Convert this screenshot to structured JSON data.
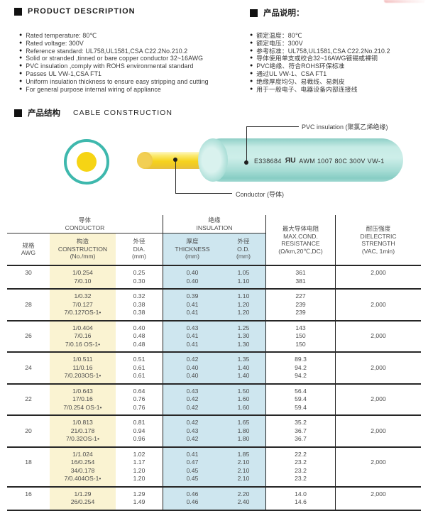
{
  "colors": {
    "teal_ring": "#3eb8ad",
    "conductor_yellow": "#f6d414",
    "band_yellow": "#faf3d2",
    "band_blue": "#cee6ef",
    "rule_dark": "#262626"
  },
  "product_description": {
    "title": "PRODUCT DESCRIPTION",
    "items": [
      "Rated temperature: 80℃",
      "Rated voltage: 300V",
      "Reference standard: UL758,UL1581,CSA C22.2No.210.2",
      "Solid or stranded ,tinned or bare copper conductor 32~16AWG",
      "PVC insulation ,comply with ROHS environmental standard",
      "Passes UL VW-1,CSA FT1",
      "Uniform insulation thickness to ensure easy stripping and cutting",
      "For general purpose internal wiring of appliance"
    ]
  },
  "product_notes_cn": {
    "title": "产品说明：",
    "items": [
      "额定温度：80℃",
      "额定电压：300V",
      "参考标准：UL758,UL1581,CSA C22.2No.210.2",
      "导体使用单支或绞合32~16AWG镀锡或裸铜",
      "PVC绝缘、符合ROHS环保标准",
      "通过UL VW-1、CSA FT1",
      "绝缘厚度均匀、易裁线、易剥皮",
      "用于一般电子、电器设备内部连接线"
    ]
  },
  "construction": {
    "title_cn": "产品结构",
    "title_en": "CABLE CONSTRUCTION",
    "insulation_label": "PVC insulation (聚氯乙烯绝缘)",
    "conductor_label": "Conductor (导体)",
    "marker_cert": "E338684",
    "marker_ul": "ЯU",
    "marker_spec": "AWM 1007 80C 300V VW-1"
  },
  "table": {
    "group_conductor_cn": "导体",
    "group_conductor_en": "CONDUCTOR",
    "group_insulation_cn": "绝缘",
    "group_insulation_en": "INSULATION",
    "col_awg": [
      "规格",
      "AWG"
    ],
    "col_construction": [
      "构造",
      "CONSTRUCTION",
      "(No./mm)"
    ],
    "col_dia": [
      "外径",
      "DIA.",
      "(mm)"
    ],
    "col_thickness": [
      "厚度",
      "THICKNESS",
      "(mm)"
    ],
    "col_od": [
      "外径",
      "O.D.",
      "(mm)"
    ],
    "col_resistance": [
      "最大导体电阻",
      "MAX.COND.",
      "RESISTANCE",
      "(Ω/km,20℃,DC)"
    ],
    "col_dielectric": [
      "耐压强度",
      "DIELECTRIC",
      "STRENGTH",
      "(VAC, 1min)"
    ],
    "rows": [
      {
        "awg": "30",
        "construction": [
          "1/0.254",
          "7/0.10"
        ],
        "dia": [
          "0.25",
          "0.30"
        ],
        "thickness": [
          "0.40",
          "0.40"
        ],
        "od": [
          "1.05",
          "1.10"
        ],
        "resistance": [
          "361",
          "381"
        ],
        "dielectric": "2,000"
      },
      {
        "awg": "28",
        "construction": [
          "1/0.32",
          "7/0.127",
          "7/0.127OS-1•"
        ],
        "dia": [
          "0.32",
          "0.38",
          "0.38"
        ],
        "thickness": [
          "0.39",
          "0.41",
          "0.41"
        ],
        "od": [
          "1.10",
          "1.20",
          "1.20"
        ],
        "resistance": [
          "227",
          "239",
          "239"
        ],
        "dielectric": "2,000"
      },
      {
        "awg": "26",
        "construction": [
          "1/0.404",
          "7/0.16",
          "7/0.16 OS-1•"
        ],
        "dia": [
          "0.40",
          "0.48",
          "0.48"
        ],
        "thickness": [
          "0.43",
          "0.41",
          "0.41"
        ],
        "od": [
          "1.25",
          "1.30",
          "1.30"
        ],
        "resistance": [
          "143",
          "150",
          "150"
        ],
        "dielectric": "2,000"
      },
      {
        "awg": "24",
        "construction": [
          "1/0.511",
          "11/0.16",
          "7/0.203OS-1•"
        ],
        "dia": [
          "0.51",
          "0.61",
          "0.61"
        ],
        "thickness": [
          "0.42",
          "0.40",
          "0.40"
        ],
        "od": [
          "1.35",
          "1.40",
          "1.40"
        ],
        "resistance": [
          "89.3",
          "94.2",
          "94.2"
        ],
        "dielectric": "2,000"
      },
      {
        "awg": "22",
        "construction": [
          "1/0.643",
          "17/0.16",
          "7/0.254 OS-1•"
        ],
        "dia": [
          "0.64",
          "0.76",
          "0.76"
        ],
        "thickness": [
          "0.43",
          "0.42",
          "0.42"
        ],
        "od": [
          "1.50",
          "1.60",
          "1.60"
        ],
        "resistance": [
          "56.4",
          "59.4",
          "59.4"
        ],
        "dielectric": "2,000"
      },
      {
        "awg": "20",
        "construction": [
          "1/0.813",
          "21/0.178",
          "7/0.32OS-1•"
        ],
        "dia": [
          "0.81",
          "0.94",
          "0.96"
        ],
        "thickness": [
          "0.42",
          "0.43",
          "0.42"
        ],
        "od": [
          "1.65",
          "1.80",
          "1.80"
        ],
        "resistance": [
          "35.2",
          "36.7",
          "36.7"
        ],
        "dielectric": "2,000"
      },
      {
        "awg": "18",
        "construction": [
          "1/1.024",
          "16/0.254",
          "34/0.178",
          "7/0.404OS-1•"
        ],
        "dia": [
          "1.02",
          "1.17",
          "1.20",
          "1.20"
        ],
        "thickness": [
          "0.41",
          "0.47",
          "0.45",
          "0.45"
        ],
        "od": [
          "1.85",
          "2.10",
          "2.10",
          "2.10"
        ],
        "resistance": [
          "22.2",
          "23.2",
          "23.2",
          "23.2"
        ],
        "dielectric": "2,000"
      },
      {
        "awg": "16",
        "construction": [
          "1/1.29",
          "26/0.254"
        ],
        "dia": [
          "1.29",
          "1.49"
        ],
        "thickness": [
          "0.46",
          "0.46"
        ],
        "od": [
          "2.20",
          "2.40"
        ],
        "resistance": [
          "14.0",
          "14.6"
        ],
        "dielectric": "2,000"
      }
    ]
  }
}
